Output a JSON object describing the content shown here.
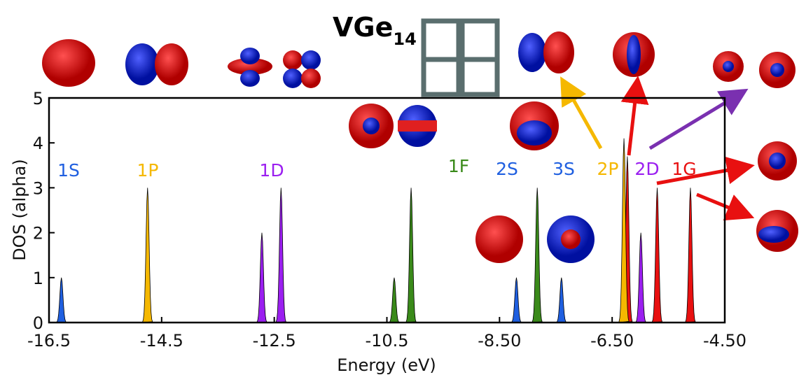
{
  "chart_data": {
    "type": "peaks",
    "title": "VGe",
    "title_subscript": "14",
    "x_label": "Energy (eV)",
    "y_label": "DOS (alpha)",
    "xlim": [
      -16.5,
      -4.5
    ],
    "ylim": [
      0,
      5
    ],
    "xticks": [
      -16.5,
      -14.5,
      -12.5,
      -10.5,
      {
        "value": -8.5,
        "label": "-8.50"
      },
      {
        "value": -6.5,
        "label": "-6.50"
      },
      {
        "value": -4.5,
        "label": "-4.50"
      }
    ],
    "yticks": [
      0,
      1,
      2,
      3,
      4,
      5
    ],
    "series": [
      {
        "name": "1G",
        "color": "#e81010",
        "x": [
          -6.23,
          -5.7,
          -5.11
        ],
        "values": [
          3.7,
          3,
          3
        ]
      },
      {
        "name": "1S",
        "color": "#1f5fe0",
        "x": [
          -16.28
        ],
        "values": [
          1
        ]
      },
      {
        "name": "1P",
        "color": "#f5b800",
        "x": [
          -14.75
        ],
        "values": [
          3
        ]
      },
      {
        "name": "1D",
        "color": "#9b1ff0",
        "x": [
          -12.72,
          -12.38
        ],
        "values": [
          2,
          3
        ]
      },
      {
        "name": "1F",
        "color": "#3a8a1a",
        "x": [
          -10.37,
          -10.07,
          -7.83
        ],
        "values": [
          1,
          3,
          3
        ]
      },
      {
        "name": "2S",
        "color": "#1f5fe0",
        "x": [
          -8.2
        ],
        "values": [
          1
        ]
      },
      {
        "name": "3S",
        "color": "#1f5fe0",
        "x": [
          -7.4
        ],
        "values": [
          1
        ]
      },
      {
        "name": "2P",
        "color": "#f5b800",
        "x": [
          -6.29
        ],
        "values": [
          4.1
        ]
      },
      {
        "name": "2D",
        "color": "#9b1ff0",
        "x": [
          -5.99
        ],
        "values": [
          2
        ]
      }
    ]
  }
}
